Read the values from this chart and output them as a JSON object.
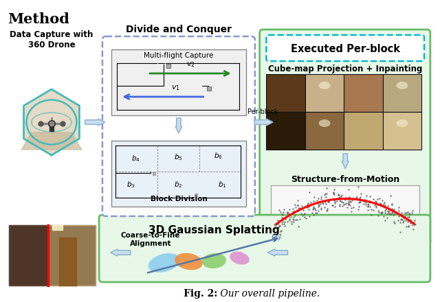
{
  "title": "Method",
  "caption_bold": "Fig. 2:",
  "caption_regular": " Our overall pipeline.",
  "bg_color": "#ffffff",
  "light_green_bg": "#e8f8e8",
  "medium_green_border": "#66bb66",
  "dashed_blue_border": "#8899cc",
  "light_blue_arrow": "#b8d4e8",
  "section_labels": {
    "data_capture": "Data Capture with\n360 Drone",
    "divide_conquer": "Divide and Conquer",
    "executed_perblock": "Executed Per-block",
    "cubemap": "Cube-map Projection + Inpainting",
    "sfm": "Structure-from-Motion",
    "gaussian": "3D Gaussian Splatting",
    "coarse_fine": "Coarse-to-Fine\nAlignment",
    "multi_flight": "Multi-flight Capture",
    "block_division": "Block Division",
    "per_block": "Per-block"
  },
  "block_labels": [
    "b4",
    "b5",
    "b6",
    "b3",
    "b2",
    "b1"
  ],
  "velocity_labels": [
    "v2",
    "v1"
  ]
}
